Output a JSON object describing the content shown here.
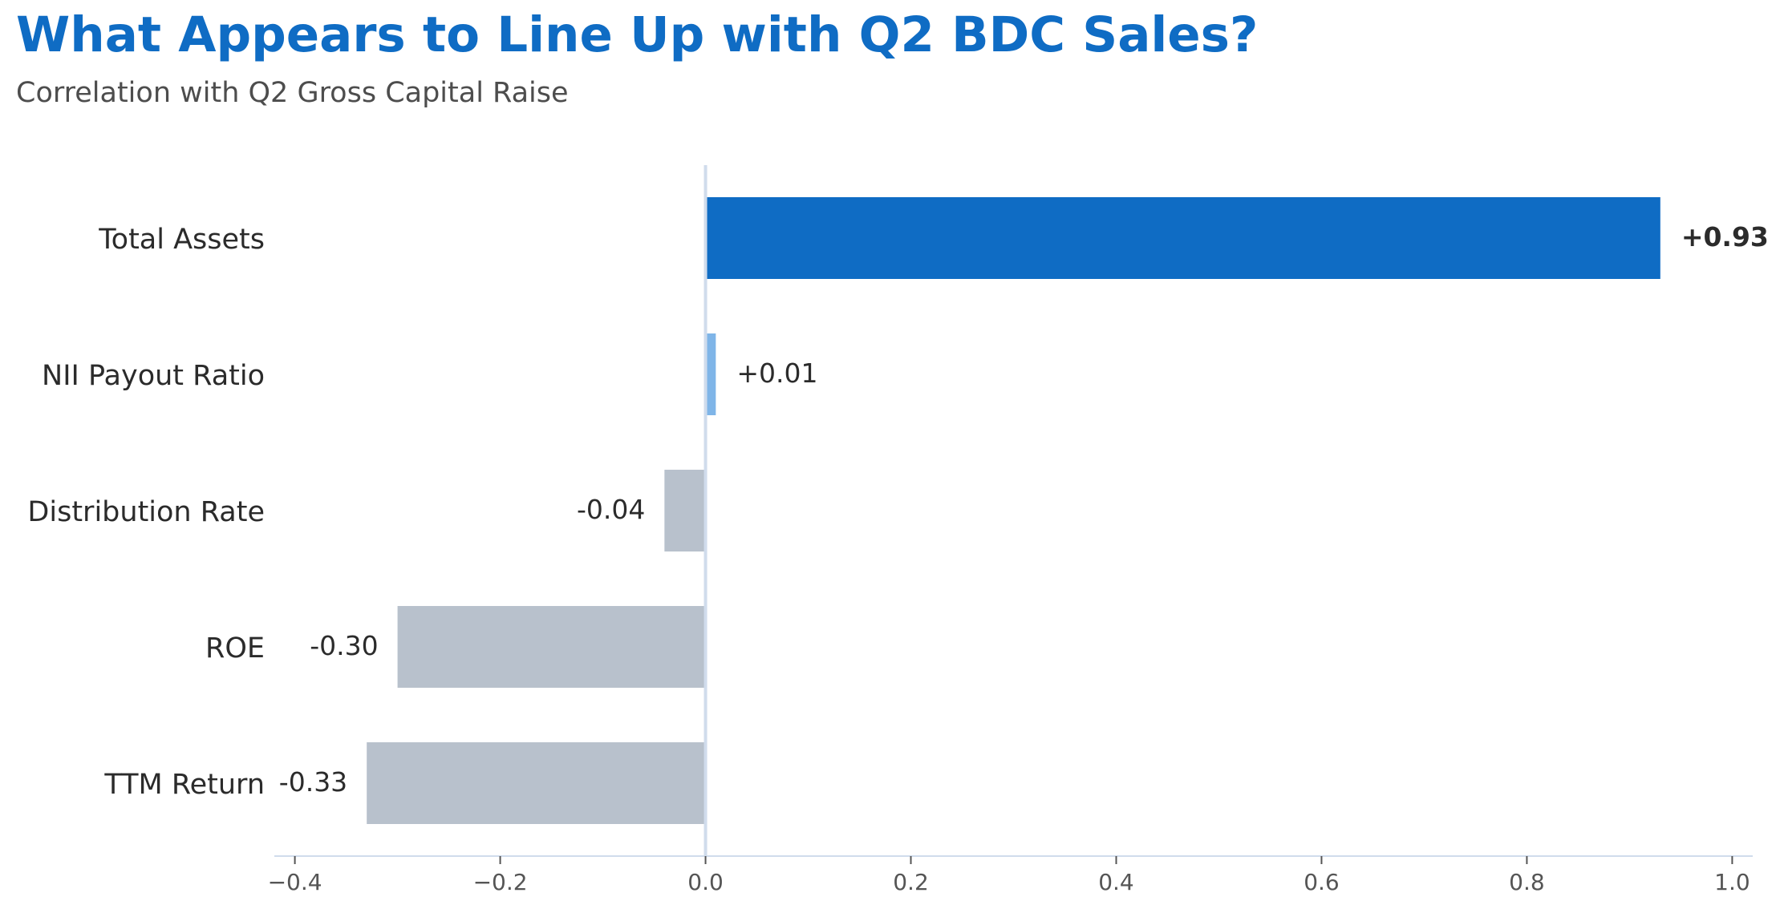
{
  "chart_data": {
    "type": "bar",
    "orientation": "horizontal",
    "title": "What Appears to Line Up with Q2 BDC Sales?",
    "subtitle": "Correlation with Q2 Gross Capital Raise",
    "categories": [
      "Total Assets",
      "NII Payout Ratio",
      "Distribution Rate",
      "ROE",
      "TTM Return"
    ],
    "values": [
      0.93,
      0.01,
      -0.04,
      -0.3,
      -0.33
    ],
    "value_labels": [
      "+0.93",
      "+0.01",
      "-0.04",
      "-0.30",
      "-0.33"
    ],
    "highlight": "Total Assets",
    "colors": {
      "highlight": "#0f6cc4",
      "positive": "#7fb5e8",
      "negative": "#b8c1cc",
      "axis": "#d0dcec",
      "title": "#0f6cc4"
    },
    "xlim": [
      -0.42,
      1.02
    ],
    "xticks": [
      -0.4,
      -0.2,
      0.0,
      0.2,
      0.4,
      0.6,
      0.8,
      1.0
    ],
    "xtick_labels": [
      "−0.4",
      "−0.2",
      "0.0",
      "0.2",
      "0.4",
      "0.6",
      "0.8",
      "1.0"
    ],
    "xlabel": "",
    "ylabel": "",
    "grid": false
  }
}
